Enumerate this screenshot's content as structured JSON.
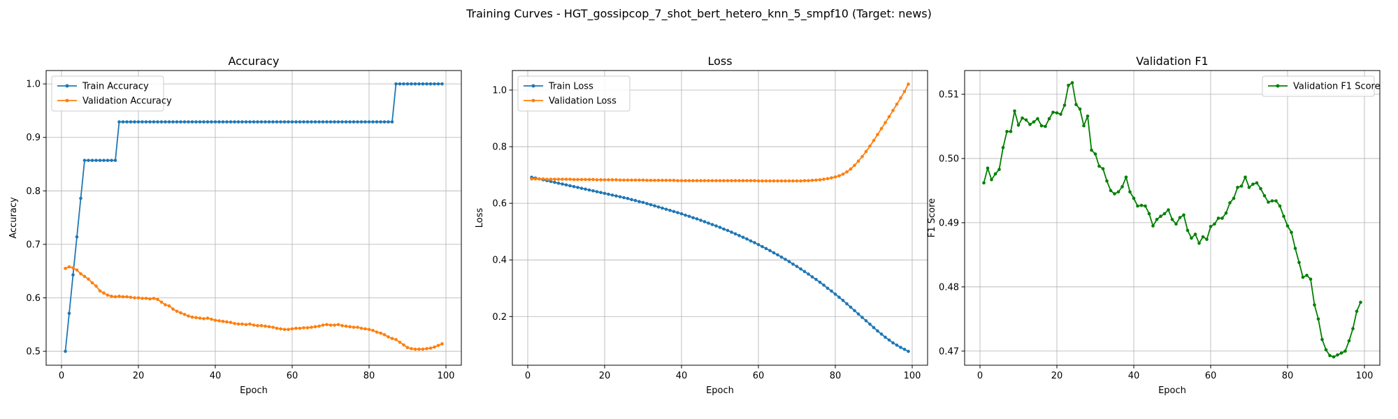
{
  "figure": {
    "suptitle": "Training Curves - HGT_gossipcop_7_shot_bert_hetero_knn_5_smpf10 (Target: news)"
  },
  "chart_data": [
    {
      "type": "line",
      "title": "Accuracy",
      "xlabel": "Epoch",
      "ylabel": "Accuracy",
      "xlim": [
        -4,
        104
      ],
      "ylim": [
        0.474,
        1.025
      ],
      "xticks": [
        0,
        20,
        40,
        60,
        80,
        100
      ],
      "yticks": [
        0.5,
        0.6,
        0.7,
        0.8,
        0.9,
        1.0
      ],
      "yticklabels": [
        "0.5",
        "0.6",
        "0.7",
        "0.8",
        "0.9",
        "1.0"
      ],
      "grid": true,
      "legend": "upper-left",
      "x_start": 1,
      "x_step": 1,
      "series": [
        {
          "name": "Train Accuracy",
          "color": "#1f77b4",
          "values": [
            0.5,
            0.571,
            0.643,
            0.714,
            0.786,
            0.857,
            0.857,
            0.857,
            0.857,
            0.857,
            0.857,
            0.857,
            0.857,
            0.857,
            0.929,
            0.929,
            0.929,
            0.929,
            0.929,
            0.929,
            0.929,
            0.929,
            0.929,
            0.929,
            0.929,
            0.929,
            0.929,
            0.929,
            0.929,
            0.929,
            0.929,
            0.929,
            0.929,
            0.929,
            0.929,
            0.929,
            0.929,
            0.929,
            0.929,
            0.929,
            0.929,
            0.929,
            0.929,
            0.929,
            0.929,
            0.929,
            0.929,
            0.929,
            0.929,
            0.929,
            0.929,
            0.929,
            0.929,
            0.929,
            0.929,
            0.929,
            0.929,
            0.929,
            0.929,
            0.929,
            0.929,
            0.929,
            0.929,
            0.929,
            0.929,
            0.929,
            0.929,
            0.929,
            0.929,
            0.929,
            0.929,
            0.929,
            0.929,
            0.929,
            0.929,
            0.929,
            0.929,
            0.929,
            0.929,
            0.929,
            0.929,
            0.929,
            0.929,
            0.929,
            0.929,
            0.929,
            1.0,
            1.0,
            1.0,
            1.0,
            1.0,
            1.0,
            1.0,
            1.0,
            1.0,
            1.0,
            1.0,
            1.0,
            1.0
          ]
        },
        {
          "name": "Validation Accuracy",
          "color": "#ff7f0e",
          "values": [
            0.655,
            0.658,
            0.656,
            0.652,
            0.645,
            0.64,
            0.635,
            0.628,
            0.622,
            0.613,
            0.609,
            0.605,
            0.603,
            0.602,
            0.603,
            0.602,
            0.602,
            0.601,
            0.6,
            0.6,
            0.599,
            0.599,
            0.598,
            0.599,
            0.597,
            0.592,
            0.587,
            0.585,
            0.579,
            0.575,
            0.572,
            0.569,
            0.566,
            0.564,
            0.563,
            0.562,
            0.561,
            0.562,
            0.56,
            0.558,
            0.557,
            0.556,
            0.555,
            0.554,
            0.552,
            0.551,
            0.551,
            0.55,
            0.551,
            0.549,
            0.548,
            0.548,
            0.547,
            0.546,
            0.545,
            0.543,
            0.542,
            0.541,
            0.541,
            0.542,
            0.543,
            0.543,
            0.544,
            0.544,
            0.545,
            0.546,
            0.547,
            0.549,
            0.55,
            0.549,
            0.549,
            0.55,
            0.548,
            0.547,
            0.546,
            0.545,
            0.545,
            0.543,
            0.542,
            0.541,
            0.539,
            0.536,
            0.534,
            0.531,
            0.527,
            0.524,
            0.522,
            0.517,
            0.512,
            0.507,
            0.505,
            0.504,
            0.504,
            0.504,
            0.505,
            0.506,
            0.508,
            0.511,
            0.514
          ]
        }
      ]
    },
    {
      "type": "line",
      "title": "Loss",
      "xlabel": "Epoch",
      "ylabel": "Loss",
      "xlim": [
        -4,
        104
      ],
      "ylim": [
        0.028,
        1.069
      ],
      "xticks": [
        0,
        20,
        40,
        60,
        80,
        100
      ],
      "yticks": [
        0.2,
        0.4,
        0.6,
        0.8,
        1.0
      ],
      "yticklabels": [
        "0.2",
        "0.4",
        "0.6",
        "0.8",
        "1.0"
      ],
      "grid": true,
      "legend": "upper-left",
      "x_start": 1,
      "x_step": 1,
      "series": [
        {
          "name": "Train Loss",
          "color": "#1f77b4",
          "values": [
            0.692,
            0.689,
            0.686,
            0.683,
            0.68,
            0.677,
            0.674,
            0.671,
            0.668,
            0.665,
            0.662,
            0.659,
            0.656,
            0.653,
            0.65,
            0.647,
            0.644,
            0.641,
            0.638,
            0.635,
            0.632,
            0.629,
            0.626,
            0.623,
            0.62,
            0.617,
            0.613,
            0.61,
            0.606,
            0.603,
            0.599,
            0.595,
            0.591,
            0.587,
            0.583,
            0.579,
            0.575,
            0.571,
            0.567,
            0.563,
            0.558,
            0.554,
            0.549,
            0.545,
            0.54,
            0.535,
            0.53,
            0.525,
            0.52,
            0.515,
            0.509,
            0.504,
            0.498,
            0.492,
            0.486,
            0.48,
            0.474,
            0.467,
            0.461,
            0.454,
            0.447,
            0.44,
            0.433,
            0.425,
            0.418,
            0.41,
            0.402,
            0.394,
            0.385,
            0.377,
            0.368,
            0.359,
            0.35,
            0.34,
            0.331,
            0.321,
            0.311,
            0.3,
            0.29,
            0.279,
            0.268,
            0.257,
            0.245,
            0.233,
            0.221,
            0.209,
            0.197,
            0.185,
            0.173,
            0.161,
            0.149,
            0.138,
            0.127,
            0.117,
            0.107,
            0.099,
            0.091,
            0.084,
            0.077
          ]
        },
        {
          "name": "Validation Loss",
          "color": "#ff7f0e",
          "values": [
            0.686,
            0.686,
            0.686,
            0.686,
            0.685,
            0.685,
            0.685,
            0.685,
            0.685,
            0.685,
            0.685,
            0.684,
            0.684,
            0.684,
            0.684,
            0.684,
            0.684,
            0.683,
            0.683,
            0.683,
            0.683,
            0.683,
            0.683,
            0.682,
            0.682,
            0.682,
            0.682,
            0.682,
            0.682,
            0.682,
            0.681,
            0.681,
            0.681,
            0.681,
            0.681,
            0.681,
            0.681,
            0.681,
            0.68,
            0.68,
            0.68,
            0.68,
            0.68,
            0.68,
            0.68,
            0.68,
            0.68,
            0.68,
            0.68,
            0.68,
            0.68,
            0.68,
            0.68,
            0.68,
            0.68,
            0.68,
            0.68,
            0.68,
            0.68,
            0.679,
            0.679,
            0.679,
            0.679,
            0.679,
            0.679,
            0.679,
            0.679,
            0.679,
            0.679,
            0.679,
            0.679,
            0.68,
            0.68,
            0.681,
            0.682,
            0.683,
            0.685,
            0.687,
            0.69,
            0.693,
            0.697,
            0.703,
            0.711,
            0.721,
            0.734,
            0.749,
            0.765,
            0.783,
            0.802,
            0.822,
            0.843,
            0.864,
            0.885,
            0.906,
            0.928,
            0.95,
            0.972,
            0.995,
            1.021
          ]
        }
      ]
    },
    {
      "type": "line",
      "title": "Validation F1",
      "xlabel": "Epoch",
      "ylabel": "F1 Score",
      "xlim": [
        -4,
        104
      ],
      "ylim": [
        0.4678,
        0.5137
      ],
      "xticks": [
        0,
        20,
        40,
        60,
        80,
        100
      ],
      "yticks": [
        0.47,
        0.48,
        0.49,
        0.5,
        0.51
      ],
      "yticklabels": [
        "0.47",
        "0.48",
        "0.49",
        "0.50",
        "0.51"
      ],
      "grid": true,
      "legend": "upper-right",
      "x_start": 1,
      "x_step": 1,
      "series": [
        {
          "name": "Validation F1 Score",
          "color": "#008000",
          "values": [
            0.4962,
            0.4985,
            0.4967,
            0.4976,
            0.4983,
            0.5017,
            0.5042,
            0.5042,
            0.5074,
            0.5052,
            0.5063,
            0.506,
            0.5053,
            0.5057,
            0.5062,
            0.5051,
            0.505,
            0.5062,
            0.5072,
            0.5071,
            0.5069,
            0.5083,
            0.5114,
            0.5118,
            0.5084,
            0.5077,
            0.5051,
            0.5066,
            0.5013,
            0.5007,
            0.4988,
            0.4984,
            0.4965,
            0.495,
            0.4945,
            0.4948,
            0.4956,
            0.4971,
            0.4948,
            0.4938,
            0.4926,
            0.4927,
            0.4926,
            0.4914,
            0.4895,
            0.4905,
            0.491,
            0.4914,
            0.492,
            0.4905,
            0.4898,
            0.4908,
            0.4912,
            0.4888,
            0.4876,
            0.4882,
            0.4868,
            0.4878,
            0.4874,
            0.4894,
            0.4898,
            0.4907,
            0.4907,
            0.4915,
            0.4931,
            0.4938,
            0.4955,
            0.4957,
            0.4971,
            0.4955,
            0.496,
            0.4962,
            0.4953,
            0.4942,
            0.4932,
            0.4934,
            0.4934,
            0.4926,
            0.491,
            0.4895,
            0.4885,
            0.486,
            0.4838,
            0.4815,
            0.4818,
            0.4812,
            0.4772,
            0.475,
            0.4718,
            0.4702,
            0.4693,
            0.4691,
            0.4694,
            0.4697,
            0.47,
            0.4716,
            0.4735,
            0.4762,
            0.4776
          ]
        }
      ]
    }
  ]
}
